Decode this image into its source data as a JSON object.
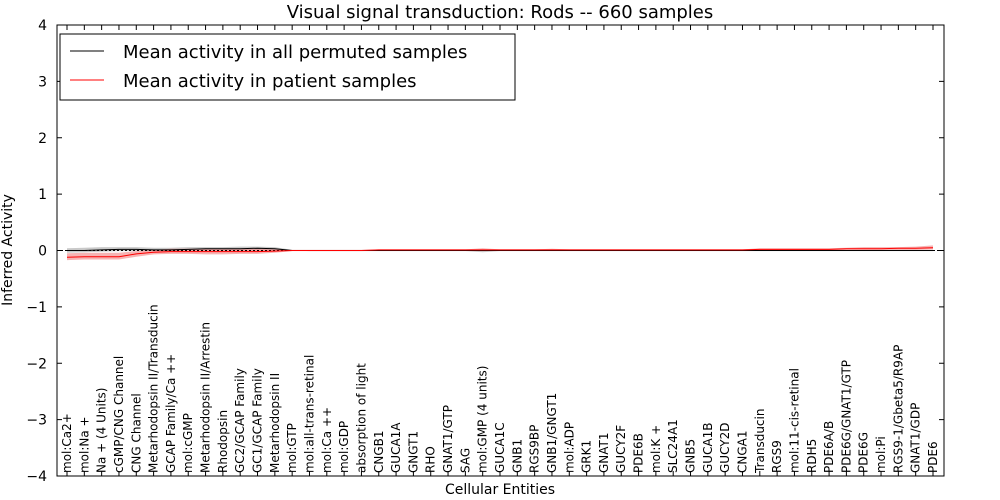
{
  "chart_data": {
    "type": "line",
    "title": "Visual signal transduction: Rods -- 660 samples",
    "xlabel": "Cellular Entities",
    "ylabel": "Inferred Activity",
    "ylim": [
      -4,
      4
    ],
    "yticks": [
      -4,
      -3,
      -2,
      -1,
      0,
      1,
      2,
      3,
      4
    ],
    "legend_position": "top-left",
    "categories": [
      "mol:Ca2+",
      "mol:Na +",
      "Na + (4 Units)",
      "cGMP/CNG Channel",
      "CNG Channel",
      "Metarhodopsin II/Transducin",
      "GCAP Family/Ca ++",
      "mol:cGMP",
      "Metarhodopsin II/Arrestin",
      "Rhodopsin",
      "GC2/GCAP Family",
      "GC1/GCAP Family",
      "Metarhodopsin II",
      "mol:GTP",
      "mol:all-trans-retinal",
      "mol:Ca ++",
      "mol:GDP",
      "absorption of light",
      "CNGB1",
      "GUCA1A",
      "GNGT1",
      "RHO",
      "GNAT1/GTP",
      "SAG",
      "mol:GMP (4 units)",
      "GUCA1C",
      "GNB1",
      "RGS9BP",
      "GNB1/GNGT1",
      "mol:ADP",
      "GRK1",
      "GNAT1",
      "GUCY2F",
      "PDE6B",
      "mol:K +",
      "SLC24A1",
      "GNB5",
      "GUCA1B",
      "GUCY2D",
      "CNGA1",
      "Transducin",
      "RGS9",
      "mol:11-cis-retinal",
      "RDH5",
      "PDE6A/B",
      "PDE6G/GNAT1/GTP",
      "PDE6G",
      "mol:Pi",
      "RGS9-1/Gbeta5/R9AP",
      "GNAT1/GDP",
      "PDE6"
    ],
    "series": [
      {
        "name": "Mean activity in all permuted samples",
        "color": "#000000",
        "values": [
          0.0,
          0.0,
          0.01,
          0.02,
          0.02,
          0.01,
          0.01,
          0.02,
          0.03,
          0.03,
          0.03,
          0.04,
          0.03,
          0.0,
          0.0,
          0.0,
          0.0,
          0.0,
          0.0,
          0.0,
          0.0,
          0.0,
          0.0,
          0.0,
          0.0,
          0.0,
          0.0,
          0.0,
          0.0,
          0.0,
          0.0,
          0.0,
          0.0,
          0.0,
          0.0,
          0.0,
          0.0,
          0.0,
          0.0,
          0.0,
          0.0,
          0.0,
          0.0,
          0.0,
          0.0,
          0.0,
          0.0,
          0.0,
          0.0,
          0.0,
          0.0
        ],
        "lower": [
          -0.04,
          -0.03,
          -0.02,
          -0.01,
          -0.01,
          -0.01,
          -0.01,
          0.0,
          0.0,
          0.0,
          0.0,
          0.0,
          0.0,
          0.0,
          -0.01,
          -0.01,
          -0.01,
          -0.01,
          -0.01,
          -0.01,
          -0.01,
          -0.01,
          -0.01,
          -0.01,
          -0.03,
          -0.01,
          -0.01,
          -0.01,
          -0.01,
          -0.01,
          -0.01,
          -0.01,
          -0.01,
          -0.01,
          -0.01,
          -0.01,
          -0.01,
          -0.01,
          -0.01,
          -0.01,
          -0.01,
          -0.01,
          -0.01,
          -0.01,
          -0.01,
          -0.01,
          -0.01,
          -0.01,
          -0.01,
          -0.01,
          -0.01
        ],
        "upper": [
          0.04,
          0.05,
          0.06,
          0.06,
          0.06,
          0.05,
          0.05,
          0.06,
          0.06,
          0.06,
          0.07,
          0.07,
          0.06,
          0.01,
          0.01,
          0.01,
          0.01,
          0.01,
          0.01,
          0.01,
          0.01,
          0.01,
          0.01,
          0.01,
          0.01,
          0.01,
          0.01,
          0.01,
          0.01,
          0.01,
          0.01,
          0.01,
          0.01,
          0.01,
          0.01,
          0.01,
          0.01,
          0.01,
          0.01,
          0.01,
          0.01,
          0.01,
          0.01,
          0.01,
          0.01,
          0.01,
          0.01,
          0.01,
          0.01,
          0.01,
          0.01
        ]
      },
      {
        "name": "Mean activity in patient samples",
        "color": "#ff0000",
        "band_color": "#f08080",
        "values": [
          -0.12,
          -0.11,
          -0.11,
          -0.11,
          -0.06,
          -0.03,
          -0.02,
          -0.02,
          -0.02,
          -0.02,
          -0.02,
          -0.02,
          -0.01,
          0.0,
          0.0,
          0.0,
          0.0,
          0.0,
          0.01,
          0.01,
          0.01,
          0.01,
          0.01,
          0.01,
          0.01,
          0.01,
          0.01,
          0.01,
          0.01,
          0.01,
          0.01,
          0.01,
          0.01,
          0.01,
          0.01,
          0.01,
          0.01,
          0.01,
          0.01,
          0.01,
          0.02,
          0.02,
          0.02,
          0.02,
          0.02,
          0.03,
          0.03,
          0.03,
          0.04,
          0.04,
          0.05
        ],
        "lower": [
          -0.17,
          -0.16,
          -0.16,
          -0.16,
          -0.11,
          -0.07,
          -0.06,
          -0.06,
          -0.07,
          -0.07,
          -0.06,
          -0.06,
          -0.04,
          -0.01,
          -0.01,
          -0.01,
          -0.01,
          -0.01,
          0.0,
          0.0,
          0.0,
          0.0,
          0.0,
          0.0,
          0.0,
          0.0,
          0.0,
          0.0,
          0.0,
          0.0,
          0.0,
          0.0,
          0.0,
          0.0,
          0.0,
          0.0,
          0.0,
          0.0,
          0.0,
          0.0,
          0.0,
          0.0,
          0.0,
          0.0,
          0.0,
          0.01,
          0.01,
          0.01,
          0.01,
          0.01,
          0.02
        ],
        "upper": [
          -0.05,
          -0.04,
          -0.04,
          -0.04,
          -0.01,
          0.01,
          0.03,
          0.03,
          0.03,
          0.03,
          0.03,
          0.03,
          0.02,
          0.01,
          0.01,
          0.01,
          0.01,
          0.01,
          0.02,
          0.02,
          0.02,
          0.02,
          0.02,
          0.02,
          0.04,
          0.02,
          0.02,
          0.02,
          0.03,
          0.02,
          0.02,
          0.02,
          0.02,
          0.02,
          0.02,
          0.02,
          0.02,
          0.02,
          0.02,
          0.02,
          0.04,
          0.04,
          0.04,
          0.04,
          0.04,
          0.05,
          0.06,
          0.06,
          0.06,
          0.07,
          0.09
        ]
      }
    ],
    "reference_line": 0
  }
}
